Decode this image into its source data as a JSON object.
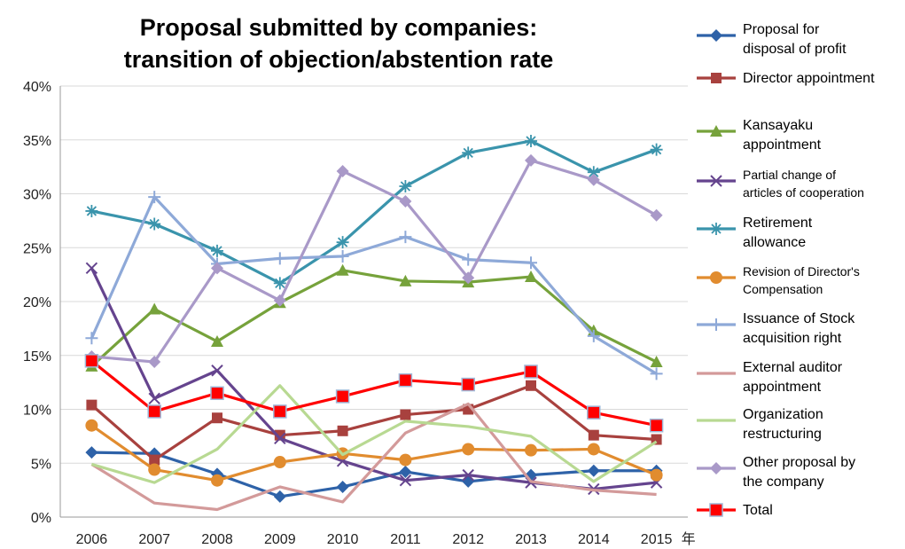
{
  "chart_data": {
    "type": "line",
    "title": "Proposal submitted by companies:",
    "subtitle": "transition of objection/abstention rate",
    "x_unit": "年",
    "categories": [
      "2006",
      "2007",
      "2008",
      "2009",
      "2010",
      "2011",
      "2012",
      "2013",
      "2014",
      "2015"
    ],
    "ylim": [
      0,
      40
    ],
    "y_ticks": [
      "0%",
      "5%",
      "10%",
      "15%",
      "20%",
      "25%",
      "30%",
      "35%",
      "40%"
    ],
    "grid": "horizontal",
    "legend_placement": "right",
    "series": [
      {
        "name": "Proposal for disposal of profit",
        "color": "#2E62A8",
        "marker": "diamond",
        "values": [
          6.0,
          5.9,
          4.0,
          1.9,
          2.8,
          4.2,
          3.3,
          3.9,
          4.3,
          4.3
        ]
      },
      {
        "name": "Director appointment",
        "color": "#A8413E",
        "marker": "square",
        "values": [
          10.4,
          5.3,
          9.2,
          7.6,
          8.0,
          9.5,
          10.0,
          12.2,
          7.6,
          7.2
        ]
      },
      {
        "name": "Kansayaku appointment",
        "color": "#76A23B",
        "marker": "triangle",
        "values": [
          14.0,
          19.3,
          16.3,
          19.9,
          22.9,
          21.9,
          21.8,
          22.3,
          17.3,
          14.4
        ]
      },
      {
        "name": "Partial change of articles of cooperation",
        "color": "#65448E",
        "marker": "x",
        "values": [
          23.1,
          11.0,
          13.6,
          7.3,
          5.2,
          3.4,
          3.9,
          3.2,
          2.6,
          3.2
        ]
      },
      {
        "name": "Retirement allowance",
        "color": "#3A94AC",
        "marker": "star",
        "values": [
          28.4,
          27.2,
          24.7,
          21.7,
          25.5,
          30.7,
          33.8,
          34.9,
          32.0,
          34.1
        ]
      },
      {
        "name": "Revision of Director's Compensation",
        "color": "#E18C2F",
        "marker": "circle",
        "values": [
          8.5,
          4.4,
          3.4,
          5.1,
          5.9,
          5.3,
          6.3,
          6.2,
          6.3,
          3.9
        ]
      },
      {
        "name": "Issuance of Stock acquisition right",
        "color": "#8EA9D8",
        "marker": "plus",
        "values": [
          16.6,
          29.7,
          23.5,
          24.0,
          24.2,
          26.0,
          23.9,
          23.6,
          16.8,
          13.3
        ]
      },
      {
        "name": "External auditor appointment",
        "color": "#D39A9A",
        "marker": "none",
        "values": [
          4.9,
          1.3,
          0.7,
          2.8,
          1.4,
          7.8,
          10.5,
          3.3,
          2.5,
          2.1
        ]
      },
      {
        "name": "Organization restructuring",
        "color": "#B8D992",
        "marker": "none",
        "values": [
          4.9,
          3.2,
          6.3,
          12.2,
          5.8,
          8.9,
          8.4,
          7.5,
          3.3,
          7.0
        ]
      },
      {
        "name": "Other proposal by the company",
        "color": "#A999C8",
        "marker": "diamond",
        "values": [
          14.9,
          14.4,
          23.1,
          20.1,
          32.1,
          29.3,
          22.2,
          33.1,
          31.3,
          28.0
        ]
      },
      {
        "name": "Total",
        "color": "#FF0000",
        "marker": "square-outlined",
        "values": [
          14.5,
          9.8,
          11.5,
          9.8,
          11.2,
          12.7,
          12.3,
          13.5,
          9.7,
          8.5
        ]
      }
    ]
  },
  "legend": [
    {
      "lines": [
        "Proposal for",
        "disposal of profit"
      ],
      "small": false
    },
    {
      "lines": [
        "Director appointment"
      ],
      "small": false
    },
    {
      "lines": [
        "Kansayaku",
        "appointment"
      ],
      "small": false
    },
    {
      "lines": [
        "Partial change of",
        "articles of cooperation"
      ],
      "small": true
    },
    {
      "lines": [
        "Retirement",
        "allowance"
      ],
      "small": false
    },
    {
      "lines": [
        "Revision of Director's",
        "Compensation"
      ],
      "small": true
    },
    {
      "lines": [
        "Issuance of Stock",
        "acquisition right"
      ],
      "small": false
    },
    {
      "lines": [
        "External auditor",
        "appointment"
      ],
      "small": false
    },
    {
      "lines": [
        "Organization",
        "restructuring"
      ],
      "small": false
    },
    {
      "lines": [
        "Other proposal by",
        "the company"
      ],
      "small": false
    },
    {
      "lines": [
        "Total"
      ],
      "small": false
    }
  ]
}
